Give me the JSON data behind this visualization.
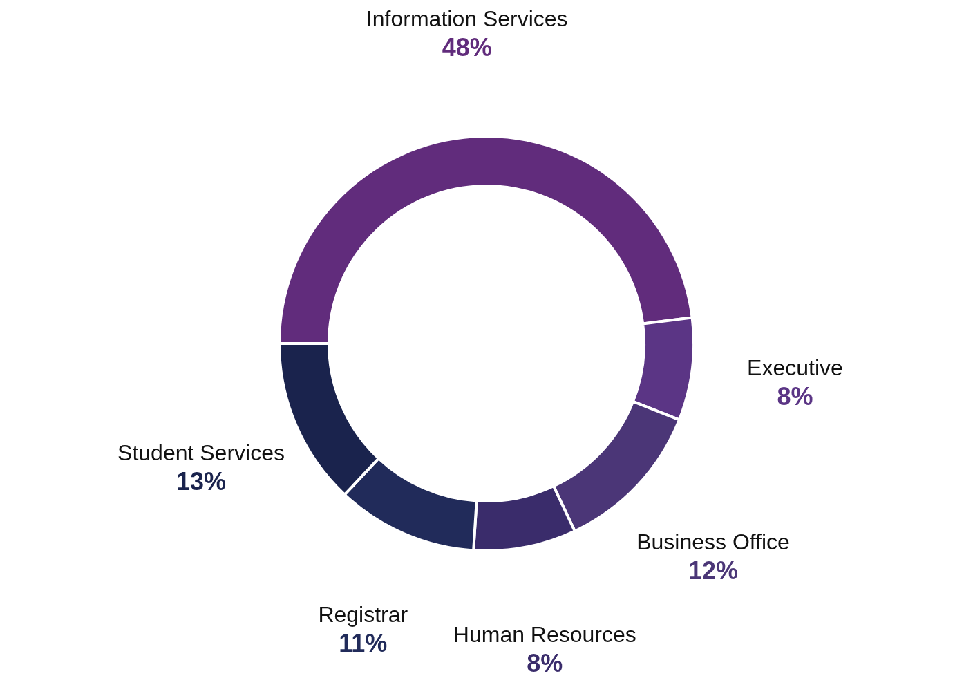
{
  "chart_data": {
    "type": "donut",
    "categories": [
      "Information Services",
      "Executive",
      "Business Office",
      "Human Resources",
      "Registrar",
      "Student Services"
    ],
    "values": [
      48,
      8,
      12,
      8,
      11,
      13
    ],
    "value_labels": [
      "48%",
      "8%",
      "12%",
      "8%",
      "11%",
      "13%"
    ],
    "colors": [
      "#612c7c",
      "#5b3585",
      "#4b3677",
      "#3a2c6b",
      "#212b5a",
      "#1a234d"
    ]
  }
}
